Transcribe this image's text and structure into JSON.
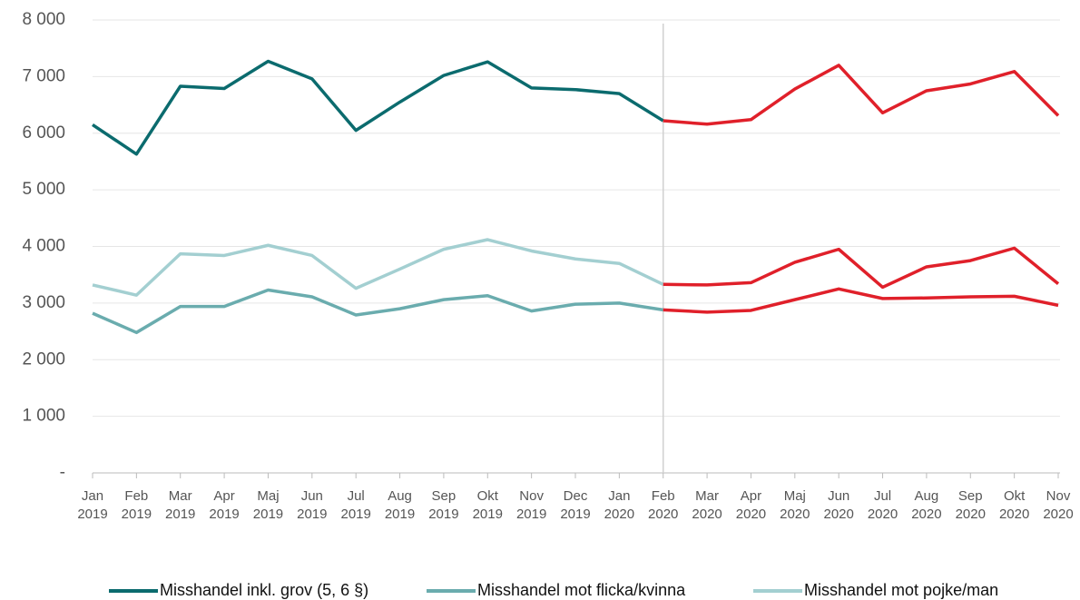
{
  "chart_data": {
    "type": "line",
    "categories": [
      "Jan 2019",
      "Feb 2019",
      "Mar 2019",
      "Apr 2019",
      "Maj 2019",
      "Jun 2019",
      "Jul 2019",
      "Aug 2019",
      "Sep 2019",
      "Okt 2019",
      "Nov 2019",
      "Dec 2019",
      "Jan 2020",
      "Feb 2020",
      "Mar 2020",
      "Apr 2020",
      "Maj 2020",
      "Jun 2020",
      "Jul 2020",
      "Aug 2020",
      "Sep 2020",
      "Okt 2020",
      "Nov 2020"
    ],
    "series": [
      {
        "name": "Misshandel inkl. grov (5, 6 §)",
        "color": "#0b6b6e",
        "values": [
          6150,
          5630,
          6830,
          6790,
          7270,
          6960,
          6050,
          6550,
          7020,
          7260,
          6800,
          6770,
          6700,
          6220,
          6160,
          6240,
          6780,
          7200,
          6360,
          6750,
          6870,
          7090,
          6310
        ]
      },
      {
        "name": "Misshandel mot flicka/kvinna",
        "color": "#6aacae",
        "values": [
          2820,
          2480,
          2940,
          2940,
          3230,
          3110,
          2790,
          2900,
          3060,
          3130,
          2860,
          2980,
          3000,
          2880,
          2840,
          2870,
          3060,
          3250,
          3080,
          3090,
          3110,
          3120,
          2960
        ]
      },
      {
        "name": "Misshandel mot pojke/man",
        "color": "#a3cfd1",
        "values": [
          3320,
          3140,
          3870,
          3840,
          4020,
          3840,
          3260,
          3600,
          3950,
          4120,
          3920,
          3780,
          3700,
          3330,
          3320,
          3360,
          3720,
          3950,
          3280,
          3640,
          3750,
          3970,
          3340
        ]
      }
    ],
    "highlight": {
      "from": "Feb 2020",
      "color": "#e0202a"
    },
    "ylim": [
      0,
      8000
    ],
    "yticks": [
      {
        "value": 0,
        "label": "-"
      },
      {
        "value": 1000,
        "label": "1 000"
      },
      {
        "value": 2000,
        "label": "2 000"
      },
      {
        "value": 3000,
        "label": "3 000"
      },
      {
        "value": 4000,
        "label": "4 000"
      },
      {
        "value": 5000,
        "label": "5 000"
      },
      {
        "value": 6000,
        "label": "6 000"
      },
      {
        "value": 7000,
        "label": "7 000"
      },
      {
        "value": 8000,
        "label": "8 000"
      }
    ],
    "grid": true,
    "legend": "bottom"
  }
}
